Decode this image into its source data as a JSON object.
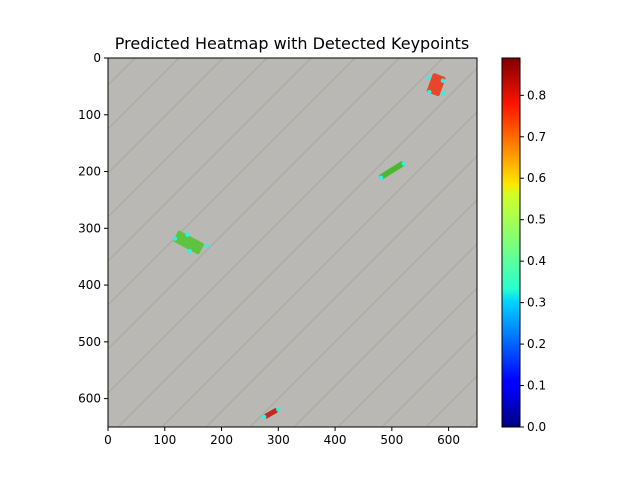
{
  "chart_data": {
    "type": "heatmap",
    "title": "Predicted Heatmap with Detected Keypoints",
    "xlabel": "",
    "ylabel": "",
    "xlim": [
      0,
      650
    ],
    "ylim": [
      650,
      0
    ],
    "x_ticks": [
      0,
      100,
      200,
      300,
      400,
      500,
      600
    ],
    "y_ticks": [
      0,
      100,
      200,
      300,
      400,
      500,
      600
    ],
    "grid": false,
    "colormap": "jet",
    "colorbar": {
      "vmin": 0.0,
      "vmax": 0.89,
      "ticks": [
        "0.0",
        "0.1",
        "0.2",
        "0.3",
        "0.4",
        "0.5",
        "0.6",
        "0.7",
        "0.8"
      ]
    },
    "background_colors": {
      "floor": "#b9b8b4",
      "plank_line": "#9d9c98"
    },
    "objects": [
      {
        "name": "object-top-right",
        "cx": 578,
        "cy": 47,
        "w": 24,
        "h": 36,
        "angle": 20,
        "color": "#e8452a",
        "value": 0.85
      },
      {
        "name": "object-mid-right",
        "cx": 500,
        "cy": 198,
        "w": 50,
        "h": 10,
        "angle": -32,
        "color": "#49b92f",
        "value": 0.45
      },
      {
        "name": "object-left",
        "cx": 142,
        "cy": 325,
        "w": 52,
        "h": 22,
        "angle": 28,
        "color": "#5ec341",
        "value": 0.42
      },
      {
        "name": "object-bottom",
        "cx": 287,
        "cy": 626,
        "w": 26,
        "h": 9,
        "angle": -30,
        "color": "#c62a1f",
        "value": 0.88
      }
    ],
    "keypoints": [
      [
        565,
        35
      ],
      [
        590,
        40
      ],
      [
        590,
        62
      ],
      [
        566,
        60
      ],
      [
        481,
        211
      ],
      [
        521,
        186
      ],
      [
        118,
        318
      ],
      [
        144,
        340
      ],
      [
        174,
        331
      ],
      [
        140,
        311
      ],
      [
        275,
        632
      ],
      [
        300,
        619
      ]
    ],
    "keypoint_color": "#2ef2e4"
  }
}
